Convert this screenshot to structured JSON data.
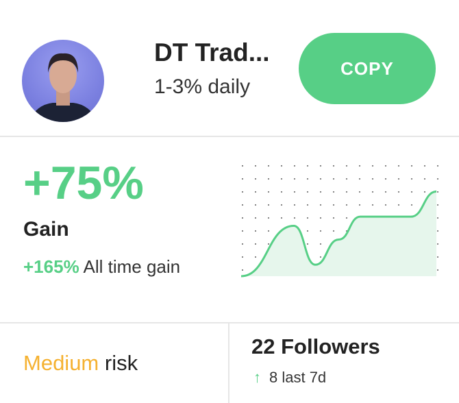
{
  "trader": {
    "name": "DT Trad...",
    "tagline": "1-3% daily"
  },
  "copy_button": {
    "label": "COPY"
  },
  "stats": {
    "gain_value": "+75%",
    "gain_label": "Gain",
    "all_time_value": "+165%",
    "all_time_label": "All time gain"
  },
  "risk": {
    "level": "Medium",
    "suffix": "risk"
  },
  "followers": {
    "count_label": "22 Followers",
    "change_icon": "arrow-up-icon",
    "change_arrow": "↑",
    "change_label": "8 last 7d"
  },
  "colors": {
    "accent": "#57cf86",
    "risk_medium": "#f5b130"
  },
  "chart_data": {
    "type": "area",
    "x": [
      0,
      27,
      38,
      50,
      61,
      87,
      100
    ],
    "values": [
      0,
      44,
      10,
      32,
      52,
      52,
      74
    ],
    "ylim": [
      0,
      100
    ],
    "grid": "dotted",
    "color": "#57cf86"
  }
}
